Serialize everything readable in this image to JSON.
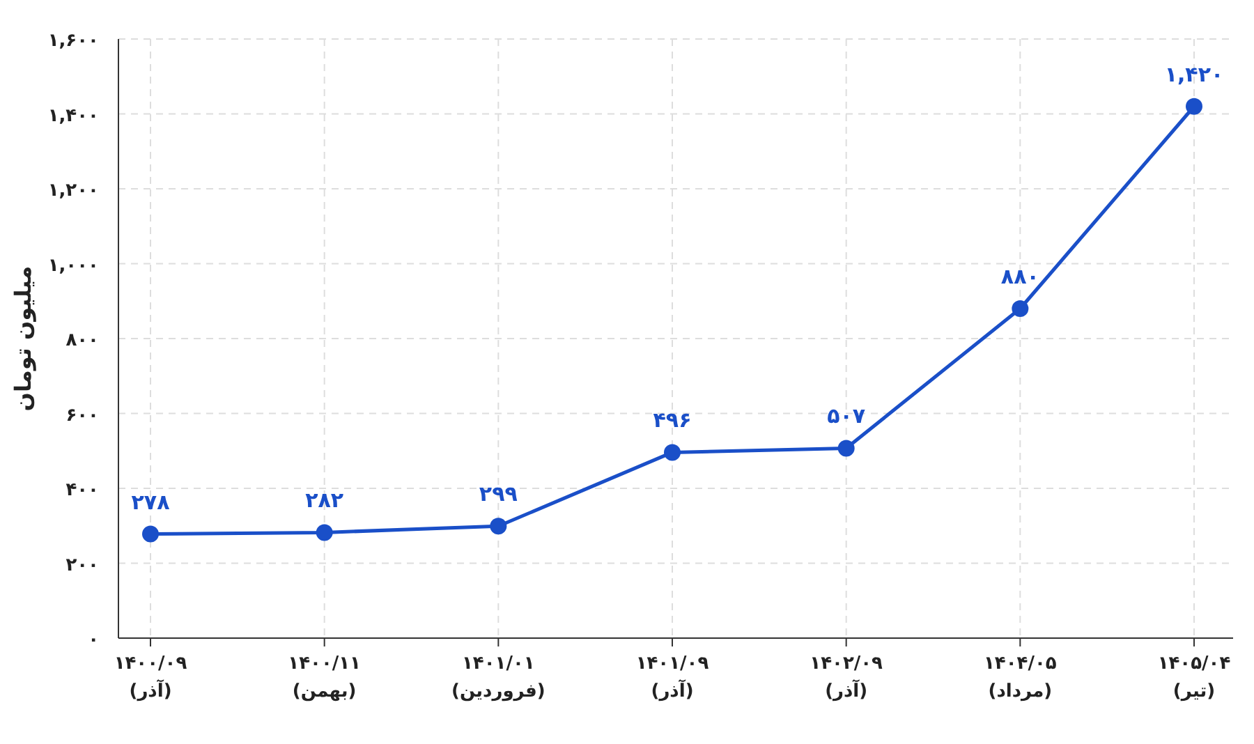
{
  "chart_data": {
    "type": "line",
    "ylabel": "میلیون تومان",
    "categories": [
      "۱۴۰۰/۰۹\n(آذر)",
      "۱۴۰۰/۱۱\n(بهمن)",
      "۱۴۰۱/۰۱\n(فروردین)",
      "۱۴۰۱/۰۹\n(آذر)",
      "۱۴۰۲/۰۹\n(آذر)",
      "۱۴۰۴/۰۵\n(مرداد)",
      "۱۴۰۵/۰۴\n(تیر)"
    ],
    "series": [
      {
        "color": "#1a4fc8",
        "values": [
          278,
          282,
          299,
          496,
          507,
          880,
          1420
        ],
        "value_labels": [
          "۲۷۸",
          "۲۸۲",
          "۲۹۹",
          "۴۹۶",
          "۵۰۷",
          "۸۸۰",
          "۱,۴۲۰"
        ]
      }
    ],
    "ylim": [
      0,
      1600
    ],
    "yticks": [
      {
        "value": 0,
        "label": "۰"
      },
      {
        "value": 200,
        "label": "۲۰۰"
      },
      {
        "value": 400,
        "label": "۴۰۰"
      },
      {
        "value": 600,
        "label": "۶۰۰"
      },
      {
        "value": 800,
        "label": "۸۰۰"
      },
      {
        "value": 1000,
        "label": "۱,۰۰۰"
      },
      {
        "value": 1200,
        "label": "۱,۲۰۰"
      },
      {
        "value": 1400,
        "label": "۱,۴۰۰"
      },
      {
        "value": 1600,
        "label": "۱,۶۰۰"
      }
    ],
    "grid": true,
    "marker": "circle",
    "line_style": "solid"
  }
}
